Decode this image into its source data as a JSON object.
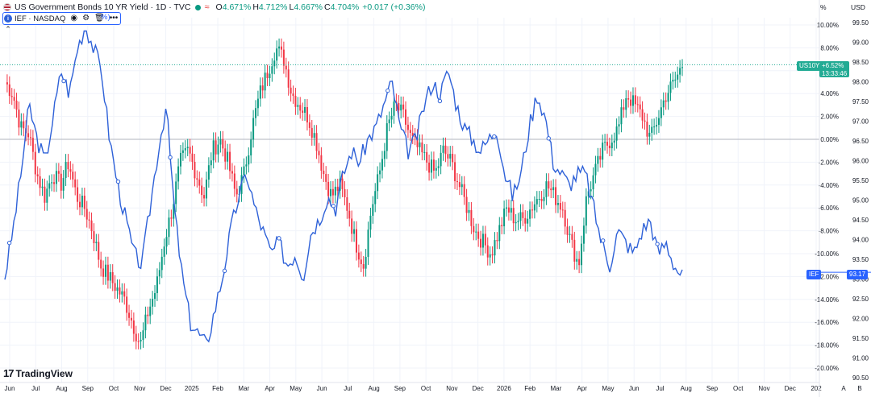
{
  "header": {
    "title": "US Government Bonds 10 YR Yield · 1D · TVC",
    "open_label": "O",
    "open_value": "4.671%",
    "high_label": "H",
    "high_value": "4.712%",
    "low_label": "L",
    "low_value": "4.667%",
    "close_label": "C",
    "close_value": "4.704%",
    "change": "+0.017 (+0.36%)"
  },
  "compare": {
    "symbol": "IEF · NASDAQ",
    "suffix": "%)"
  },
  "branding": {
    "logo_mark": "17",
    "logo_text": "TradingView"
  },
  "axis": {
    "currency": "USD",
    "percent_label": "%",
    "x_extra": [
      "A",
      "B"
    ]
  },
  "tags": {
    "main_symbol": "US10Y",
    "main_change": "+6.52%",
    "main_countdown": "13:33:46",
    "ief_symbol": "IEF",
    "ief_price": "93.17"
  },
  "colors": {
    "up": "#089981",
    "down": "#f23645",
    "compare_line": "#2e61d8",
    "grid": "#f0f3fa",
    "zero_line": "#b2b5be",
    "main_tag": "#22ab94",
    "ief_tag": "#2962ff"
  },
  "chart_data": {
    "type": "line",
    "title": "US Government Bonds 10 YR Yield · 1D · TVC",
    "scale": "percent change",
    "x_ticks": [
      "Jun",
      "Jul",
      "Aug",
      "Sep",
      "Oct",
      "Nov",
      "Dec",
      "2025",
      "Feb",
      "Mar",
      "Apr",
      "May",
      "Jun",
      "Jul",
      "Aug",
      "Sep",
      "Oct",
      "Nov",
      "Dec",
      "2026",
      "Feb",
      "Mar",
      "Apr",
      "May",
      "Jun",
      "Jul",
      "Aug",
      "Sep",
      "Oct",
      "Nov",
      "Dec",
      "202"
    ],
    "y_left_ticks": [
      "10.00%",
      "8.00%",
      "6.00%",
      "4.00%",
      "2.00%",
      "0.00%",
      "-2.00%",
      "-4.00%",
      "-6.00%",
      "-8.00%",
      "-10.00%",
      "-12.00%",
      "-14.00%",
      "-16.00%",
      "-18.00%",
      "-20.00%"
    ],
    "y_left_range": [
      -20,
      10
    ],
    "y_right_ticks": [
      "99.50",
      "99.00",
      "98.50",
      "98.00",
      "97.50",
      "97.00",
      "96.50",
      "96.00",
      "95.50",
      "95.00",
      "94.50",
      "94.00",
      "93.50",
      "93.00",
      "92.50",
      "92.00",
      "91.50",
      "91.00",
      "90.50"
    ],
    "y_right_range": [
      90.5,
      99.5
    ],
    "series": [
      {
        "name": "US10Y",
        "style": "candles",
        "values": [
          5,
          4,
          1,
          0.5,
          -3,
          -5,
          -3,
          -4,
          -2,
          -5,
          -6,
          -8,
          -11,
          -12,
          -13,
          -14,
          -16,
          -18,
          -15,
          -13,
          -9,
          -6,
          -2,
          -1,
          -3,
          -5,
          -1,
          0,
          -2,
          -5,
          -3,
          1,
          4,
          6,
          8,
          7,
          4,
          3,
          2,
          0,
          -3,
          -5,
          -4,
          -6,
          -9,
          -11,
          -6,
          -3,
          1,
          3,
          2,
          0,
          -1,
          -2,
          -3,
          -1,
          -2,
          -4,
          -6,
          -8,
          -9,
          -10,
          -8,
          -6,
          -7,
          -7,
          -6,
          -5,
          -4,
          -5,
          -6,
          -9,
          -11,
          -5,
          -3,
          -1,
          0,
          1,
          4,
          3,
          2,
          0,
          2,
          4,
          5,
          6.5
        ],
        "last": 6.52
      },
      {
        "name": "IEF",
        "style": "line",
        "values": [
          -12,
          -8,
          -3,
          3,
          0,
          -2,
          2,
          6,
          4,
          8,
          10,
          8,
          6,
          0,
          -4,
          -7,
          -10,
          -11,
          -6,
          -1,
          3,
          -6,
          -12,
          -16,
          -17,
          -18,
          -15,
          -12,
          -8,
          -5,
          -3,
          -6,
          -8,
          -10,
          -9,
          -11,
          -10,
          -12,
          -8,
          -7,
          -5,
          -6,
          -3,
          -1,
          -2,
          0,
          1,
          3,
          5,
          1,
          -1,
          0,
          3,
          5,
          4,
          6,
          3,
          1,
          0,
          -1,
          0,
          1,
          -3,
          -5,
          -3,
          1,
          4,
          2,
          -2,
          -3,
          -4,
          -3,
          -3,
          -6,
          -9,
          -11,
          -8,
          -9,
          -10,
          -8,
          -7,
          -10,
          -9,
          -11,
          -12
        ],
        "last_price": 93.17
      }
    ]
  }
}
